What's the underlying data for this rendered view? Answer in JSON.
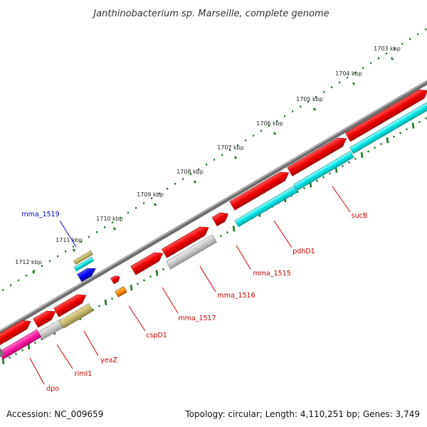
{
  "title": "Janthinobacterium sp. Marseille, complete genome",
  "footer": {
    "accession": "Accession: NC_009659",
    "topology": "Topology: circular; Length: 4,110,251 bp; Genes: 3,749"
  },
  "kbp_labels": [
    "1703 kbp",
    "1704 kbp",
    "1705 kbp",
    "1706 kbp",
    "1707 kbp",
    "1708 kbp",
    "1709 kbp",
    "1710 kbp",
    "1711 kbp",
    "1712 kbp"
  ],
  "gene_labels": [
    {
      "name": "sucB",
      "color": "#cc0000"
    },
    {
      "name": "pdhD1",
      "color": "#cc0000"
    },
    {
      "name": "mma_1515",
      "color": "#cc0000"
    },
    {
      "name": "mma_1516",
      "color": "#cc0000"
    },
    {
      "name": "mma_1517",
      "color": "#cc0000"
    },
    {
      "name": "cspD1",
      "color": "#cc0000"
    },
    {
      "name": "yeaZ",
      "color": "#cc0000"
    },
    {
      "name": "rimI1",
      "color": "#cc0000"
    },
    {
      "name": "dpo",
      "color": "#cc0000"
    },
    {
      "name": "mma_1519",
      "color": "#0000cc"
    }
  ],
  "colors": {
    "backbone": "#888888",
    "scale_ticks": "#1a7a1a",
    "cds_forward": "#ee0000",
    "cds_rgene": "#00e5e5",
    "cds_olive": "#c2b76a",
    "cds_grey": "#c8c8c8",
    "cds_pink": "#ff1aa0",
    "cds_blue": "#0000ee",
    "cds_orange": "#ff8800"
  }
}
